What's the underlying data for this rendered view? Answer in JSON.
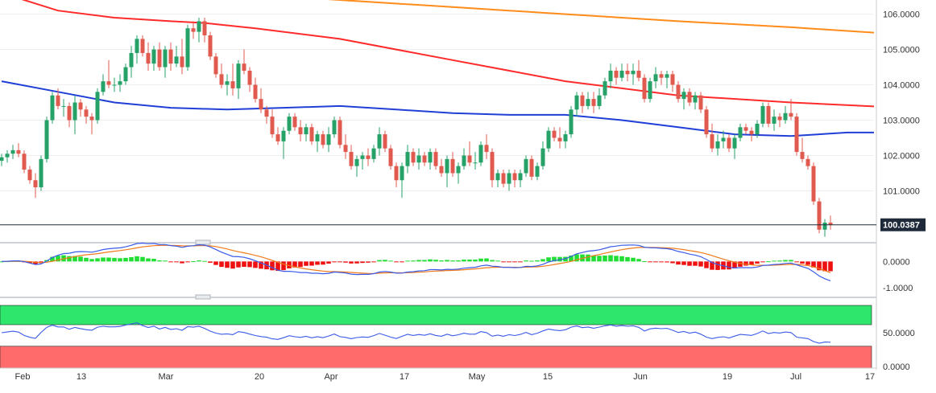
{
  "chart_data": {
    "type": "candlestick",
    "price_panel": {
      "y_axis_ticks": [
        "106.0000",
        "105.0000",
        "104.0000",
        "103.0000",
        "102.0000",
        "101.0000"
      ],
      "y_tick_values": [
        106.0,
        105.0,
        104.0,
        103.0,
        102.0,
        101.0
      ],
      "ylim": [
        99.6,
        106.4
      ],
      "last_price_label": "100.0387",
      "last_price": 100.0387,
      "candles": [
        [
          101.85,
          102.05,
          101.7,
          101.95
        ],
        [
          101.95,
          102.15,
          101.8,
          102.05
        ],
        [
          102.05,
          102.3,
          101.9,
          102.15
        ],
        [
          102.15,
          102.35,
          101.95,
          102.05
        ],
        [
          102.05,
          102.15,
          101.5,
          101.6
        ],
        [
          101.6,
          101.7,
          101.2,
          101.3
        ],
        [
          101.3,
          101.5,
          100.8,
          101.1
        ],
        [
          101.1,
          102.0,
          101.0,
          101.9
        ],
        [
          101.9,
          103.1,
          101.8,
          103.0
        ],
        [
          103.0,
          103.8,
          102.9,
          103.7
        ],
        [
          103.7,
          103.9,
          103.3,
          103.4
        ],
        [
          103.4,
          103.6,
          103.1,
          103.4
        ],
        [
          103.4,
          103.5,
          102.8,
          103.0
        ],
        [
          103.0,
          103.7,
          102.6,
          103.5
        ],
        [
          103.5,
          103.6,
          103.1,
          103.3
        ],
        [
          103.3,
          103.4,
          102.9,
          103.1
        ],
        [
          103.1,
          103.2,
          102.6,
          103.0
        ],
        [
          103.0,
          103.9,
          102.9,
          103.8
        ],
        [
          103.8,
          104.3,
          103.7,
          104.1
        ],
        [
          104.1,
          104.7,
          103.9,
          104.0
        ],
        [
          104.0,
          104.2,
          103.8,
          104.0
        ],
        [
          104.0,
          104.3,
          103.8,
          104.1
        ],
        [
          104.1,
          104.6,
          104.0,
          104.5
        ],
        [
          104.5,
          105.1,
          104.2,
          104.9
        ],
        [
          104.9,
          105.4,
          104.6,
          105.3
        ],
        [
          105.3,
          105.4,
          104.8,
          104.9
        ],
        [
          104.9,
          105.2,
          104.4,
          104.6
        ],
        [
          104.6,
          105.1,
          104.4,
          105.0
        ],
        [
          105.0,
          105.2,
          104.4,
          104.5
        ],
        [
          104.5,
          105.1,
          104.2,
          105.0
        ],
        [
          105.0,
          105.2,
          104.4,
          104.6
        ],
        [
          104.6,
          105.1,
          104.5,
          104.8
        ],
        [
          104.8,
          105.3,
          104.3,
          104.5
        ],
        [
          104.5,
          105.7,
          104.4,
          105.6
        ],
        [
          105.6,
          105.8,
          105.3,
          105.5
        ],
        [
          105.5,
          105.9,
          105.2,
          105.8
        ],
        [
          105.8,
          105.9,
          105.2,
          105.4
        ],
        [
          105.4,
          105.5,
          104.7,
          104.8
        ],
        [
          104.8,
          104.9,
          104.2,
          104.3
        ],
        [
          104.3,
          104.6,
          103.9,
          104.0
        ],
        [
          104.0,
          104.3,
          103.7,
          104.1
        ],
        [
          104.1,
          104.6,
          103.7,
          103.9
        ],
        [
          103.9,
          104.7,
          103.6,
          104.6
        ],
        [
          104.6,
          105.0,
          104.3,
          104.4
        ],
        [
          104.4,
          104.5,
          103.8,
          104.0
        ],
        [
          104.0,
          104.2,
          103.5,
          103.6
        ],
        [
          103.6,
          103.9,
          103.2,
          103.3
        ],
        [
          103.3,
          103.4,
          102.9,
          103.1
        ],
        [
          103.1,
          103.3,
          102.5,
          102.6
        ],
        [
          102.6,
          102.8,
          102.3,
          102.4
        ],
        [
          102.4,
          102.8,
          101.9,
          102.7
        ],
        [
          102.7,
          103.2,
          102.6,
          103.1
        ],
        [
          103.1,
          103.2,
          102.7,
          102.8
        ],
        [
          102.8,
          103.0,
          102.4,
          102.6
        ],
        [
          102.6,
          102.9,
          102.4,
          102.8
        ],
        [
          102.8,
          102.9,
          102.3,
          102.4
        ],
        [
          102.4,
          102.7,
          102.1,
          102.6
        ],
        [
          102.6,
          102.7,
          102.2,
          102.3
        ],
        [
          102.3,
          102.8,
          102.1,
          102.6
        ],
        [
          102.6,
          103.1,
          102.5,
          103.0
        ],
        [
          103.0,
          103.1,
          102.2,
          102.3
        ],
        [
          102.3,
          102.6,
          101.9,
          102.1
        ],
        [
          102.1,
          102.3,
          101.6,
          101.7
        ],
        [
          101.7,
          102.0,
          101.4,
          101.9
        ],
        [
          101.9,
          102.1,
          101.6,
          102.0
        ],
        [
          102.0,
          102.2,
          101.7,
          101.9
        ],
        [
          101.9,
          102.3,
          101.8,
          102.2
        ],
        [
          102.2,
          102.8,
          102.0,
          102.6
        ],
        [
          102.6,
          102.7,
          102.1,
          102.2
        ],
        [
          102.2,
          102.3,
          101.6,
          101.7
        ],
        [
          101.7,
          101.8,
          101.1,
          101.3
        ],
        [
          101.3,
          101.8,
          100.8,
          101.7
        ],
        [
          101.7,
          102.3,
          101.5,
          102.1
        ],
        [
          102.1,
          102.2,
          101.7,
          101.8
        ],
        [
          101.8,
          102.2,
          101.6,
          102.0
        ],
        [
          102.0,
          102.1,
          101.7,
          101.8
        ],
        [
          101.8,
          102.2,
          101.6,
          102.1
        ],
        [
          102.1,
          102.2,
          101.6,
          101.7
        ],
        [
          101.7,
          101.9,
          101.4,
          101.5
        ],
        [
          101.5,
          102.0,
          101.1,
          101.9
        ],
        [
          101.9,
          102.1,
          101.4,
          101.5
        ],
        [
          101.5,
          101.8,
          101.2,
          101.7
        ],
        [
          101.7,
          102.2,
          101.6,
          102.0
        ],
        [
          102.0,
          102.4,
          101.7,
          101.8
        ],
        [
          101.8,
          102.1,
          101.6,
          101.8
        ],
        [
          101.8,
          102.4,
          101.7,
          102.3
        ],
        [
          102.3,
          102.6,
          101.9,
          102.1
        ],
        [
          102.1,
          102.2,
          101.1,
          101.3
        ],
        [
          101.3,
          101.6,
          101.1,
          101.5
        ],
        [
          101.5,
          101.6,
          101.1,
          101.2
        ],
        [
          101.2,
          101.6,
          101.0,
          101.5
        ],
        [
          101.5,
          101.6,
          101.1,
          101.3
        ],
        [
          101.3,
          101.6,
          101.1,
          101.5
        ],
        [
          101.5,
          102.0,
          101.4,
          101.9
        ],
        [
          101.9,
          102.0,
          101.3,
          101.4
        ],
        [
          101.4,
          101.8,
          101.3,
          101.7
        ],
        [
          101.7,
          102.4,
          101.6,
          102.2
        ],
        [
          102.2,
          102.8,
          102.1,
          102.7
        ],
        [
          102.7,
          102.8,
          102.4,
          102.5
        ],
        [
          102.5,
          102.8,
          102.2,
          102.4
        ],
        [
          102.4,
          102.7,
          102.2,
          102.6
        ],
        [
          102.6,
          103.4,
          102.5,
          103.3
        ],
        [
          103.3,
          103.8,
          103.1,
          103.7
        ],
        [
          103.7,
          103.8,
          103.2,
          103.4
        ],
        [
          103.4,
          103.8,
          103.3,
          103.6
        ],
        [
          103.6,
          103.8,
          103.2,
          103.4
        ],
        [
          103.4,
          103.9,
          103.3,
          103.7
        ],
        [
          103.7,
          104.2,
          103.6,
          104.1
        ],
        [
          104.1,
          104.6,
          103.9,
          104.4
        ],
        [
          104.4,
          104.5,
          104.0,
          104.2
        ],
        [
          104.2,
          104.6,
          104.1,
          104.4
        ],
        [
          104.4,
          104.6,
          104.1,
          104.3
        ],
        [
          104.3,
          104.6,
          104.0,
          104.4
        ],
        [
          104.4,
          104.7,
          104.1,
          104.2
        ],
        [
          104.2,
          104.3,
          103.5,
          103.6
        ],
        [
          103.6,
          104.2,
          103.5,
          104.1
        ],
        [
          104.1,
          104.5,
          103.9,
          104.3
        ],
        [
          104.3,
          104.4,
          104.0,
          104.2
        ],
        [
          104.2,
          104.4,
          103.9,
          104.3
        ],
        [
          104.3,
          104.4,
          103.8,
          104.0
        ],
        [
          104.0,
          104.1,
          103.5,
          103.6
        ],
        [
          103.6,
          103.9,
          103.3,
          103.8
        ],
        [
          103.8,
          103.9,
          103.4,
          103.5
        ],
        [
          103.5,
          103.8,
          103.3,
          103.7
        ],
        [
          103.7,
          103.8,
          103.2,
          103.3
        ],
        [
          103.3,
          103.4,
          102.5,
          102.6
        ],
        [
          102.6,
          102.9,
          102.1,
          102.2
        ],
        [
          102.2,
          102.6,
          102.0,
          102.4
        ],
        [
          102.4,
          102.7,
          102.2,
          102.5
        ],
        [
          102.5,
          102.6,
          102.1,
          102.2
        ],
        [
          102.2,
          102.6,
          101.9,
          102.5
        ],
        [
          102.5,
          102.9,
          102.4,
          102.8
        ],
        [
          102.8,
          102.9,
          102.6,
          102.7
        ],
        [
          102.7,
          102.8,
          102.4,
          102.6
        ],
        [
          102.6,
          103.0,
          102.5,
          102.9
        ],
        [
          102.9,
          103.5,
          102.8,
          103.4
        ],
        [
          103.4,
          103.5,
          102.8,
          102.9
        ],
        [
          102.9,
          103.3,
          102.7,
          103.1
        ],
        [
          103.1,
          103.2,
          102.8,
          103.0
        ],
        [
          103.0,
          103.4,
          102.9,
          103.2
        ],
        [
          103.2,
          103.6,
          103.0,
          103.1
        ],
        [
          103.1,
          103.2,
          102.0,
          102.1
        ],
        [
          102.1,
          102.5,
          101.8,
          101.9
        ],
        [
          101.9,
          102.0,
          101.6,
          101.7
        ],
        [
          101.7,
          101.8,
          100.6,
          100.7
        ],
        [
          100.7,
          100.8,
          99.8,
          99.9
        ],
        [
          99.9,
          100.2,
          99.7,
          100.1
        ],
        [
          100.1,
          100.3,
          99.9,
          100.04
        ]
      ],
      "ma_200": [
        [
          0,
          106.8
        ],
        [
          20,
          106.75
        ],
        [
          40,
          106.6
        ],
        [
          60,
          106.4
        ],
        [
          80,
          106.2
        ],
        [
          100,
          106.0
        ],
        [
          120,
          105.8
        ],
        [
          140,
          105.63
        ],
        [
          160,
          105.42
        ],
        [
          180,
          105.2
        ],
        [
          200,
          105.0
        ],
        [
          215,
          104.82
        ],
        [
          230,
          104.6
        ],
        [
          245,
          104.38
        ],
        [
          255,
          104.3
        ]
      ],
      "ma_100": [
        [
          0,
          106.6
        ],
        [
          10,
          106.1
        ],
        [
          20,
          105.9
        ],
        [
          30,
          105.8
        ],
        [
          36,
          105.75
        ],
        [
          45,
          105.6
        ],
        [
          60,
          105.3
        ],
        [
          80,
          104.7
        ],
        [
          100,
          104.1
        ],
        [
          120,
          103.7
        ],
        [
          140,
          103.5
        ],
        [
          160,
          103.35
        ],
        [
          180,
          103.15
        ],
        [
          200,
          103.05
        ],
        [
          215,
          103.05
        ],
        [
          235,
          103.05
        ],
        [
          245,
          102.95
        ],
        [
          255,
          102.8
        ]
      ],
      "ma_55": [
        [
          0,
          104.1
        ],
        [
          10,
          103.8
        ],
        [
          20,
          103.5
        ],
        [
          30,
          103.35
        ],
        [
          40,
          103.3
        ],
        [
          50,
          103.35
        ],
        [
          60,
          103.4
        ],
        [
          70,
          103.3
        ],
        [
          80,
          103.2
        ],
        [
          90,
          103.15
        ],
        [
          100,
          103.15
        ],
        [
          110,
          103.0
        ],
        [
          120,
          102.8
        ],
        [
          130,
          102.6
        ],
        [
          140,
          102.55
        ],
        [
          150,
          102.65
        ],
        [
          160,
          102.65
        ],
        [
          170,
          102.6
        ],
        [
          180,
          102.6
        ],
        [
          190,
          102.7
        ],
        [
          200,
          102.75
        ],
        [
          210,
          102.8
        ],
        [
          220,
          102.85
        ],
        [
          230,
          102.85
        ],
        [
          240,
          102.8
        ],
        [
          247,
          102.7
        ]
      ]
    },
    "macd_panel": {
      "y_axis_ticks": [
        "0.0000",
        "-1.0000"
      ],
      "y_tick_values": [
        0.0,
        -1.0
      ],
      "ylim": [
        -1.3,
        0.65
      ]
    },
    "rsi_panel": {
      "y_axis_ticks": [
        "50.0000",
        "0.0000"
      ],
      "y_tick_values": [
        50.0,
        0.0
      ],
      "ylim": [
        0,
        100
      ],
      "upper_band_color": "#2ee66b",
      "lower_band_color": "#ff6b6b"
    },
    "x_axis_ticks": [
      "Feb",
      "13",
      "Mar",
      "20",
      "Apr",
      "17",
      "May",
      "15",
      "Jun",
      "19",
      "Jul",
      "17"
    ],
    "colors": {
      "up_candle": "#26a269",
      "down_candle": "#e05a4f",
      "ma_200": "#ff8c1a",
      "ma_100": "#ff2a2a",
      "ma_55": "#1f3fd6",
      "macd_line": "#3a5be8",
      "signal_line": "#f07a1a",
      "hist_positive": "#22dd33",
      "hist_negative": "#ee1111",
      "rsi_line": "#3a5be8"
    }
  }
}
